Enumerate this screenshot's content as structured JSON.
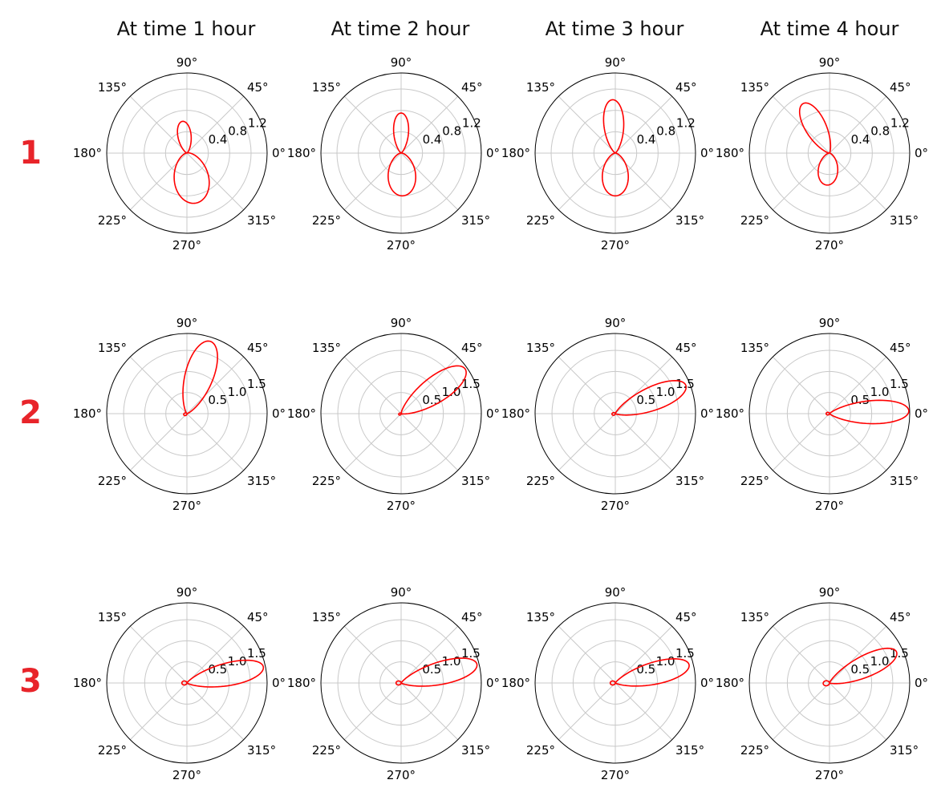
{
  "column_titles": [
    "At time 1 hour",
    "At time 2 hour",
    "At time 3 hour",
    "At time 4 hour"
  ],
  "row_labels": [
    "1",
    "2",
    "3"
  ],
  "angle_labels": [
    "0°",
    "45°",
    "90°",
    "135°",
    "180°",
    "225°",
    "270°",
    "315°"
  ],
  "colors": {
    "curve": "#ff0000",
    "grid": "#c8c8c8",
    "frame": "#000000",
    "row_label": "#e8242a"
  },
  "chart_data": [
    {
      "type": "polar",
      "row": 1,
      "col": 1,
      "title": "At time 1 hour",
      "rmax": 1.5,
      "rticks": [
        0.4,
        0.8,
        1.2
      ],
      "rtick_labels": [
        "0.4",
        "0.8",
        "1.2"
      ],
      "lobes": [
        {
          "theta": 98,
          "r": 0.6,
          "width": 20
        },
        {
          "theta": 280,
          "r": 0.95,
          "width": 34
        }
      ]
    },
    {
      "type": "polar",
      "row": 1,
      "col": 2,
      "title": "At time 2 hour",
      "rmax": 1.5,
      "rticks": [
        0.4,
        0.8,
        1.2
      ],
      "rtick_labels": [
        "0.4",
        "0.8",
        "1.2"
      ],
      "lobes": [
        {
          "theta": 90,
          "r": 0.75,
          "width": 18
        },
        {
          "theta": 272,
          "r": 0.8,
          "width": 32
        }
      ]
    },
    {
      "type": "polar",
      "row": 1,
      "col": 3,
      "title": "At time 3 hour",
      "rmax": 1.5,
      "rticks": [
        0.4,
        0.8,
        1.2
      ],
      "rtick_labels": [
        "0.4",
        "0.8",
        "1.2"
      ],
      "lobes": [
        {
          "theta": 93,
          "r": 1.0,
          "width": 18
        },
        {
          "theta": 270,
          "r": 0.8,
          "width": 30
        }
      ]
    },
    {
      "type": "polar",
      "row": 1,
      "col": 4,
      "title": "At time 4 hour",
      "rmax": 1.5,
      "rticks": [
        0.4,
        0.8,
        1.2
      ],
      "rtick_labels": [
        "0.4",
        "0.8",
        "1.2"
      ],
      "lobes": [
        {
          "theta": 118,
          "r": 1.05,
          "width": 18
        },
        {
          "theta": 265,
          "r": 0.6,
          "width": 30
        }
      ]
    },
    {
      "type": "polar",
      "row": 2,
      "col": 1,
      "title": "At time 1 hour",
      "rmax": 1.9,
      "rticks": [
        0.5,
        1.0,
        1.5
      ],
      "rtick_labels": [
        "0.5",
        "1.0",
        "1.5"
      ],
      "lobes": [
        {
          "theta": 72,
          "r": 1.8,
          "width": 18
        },
        {
          "theta": 200,
          "r": 0.08,
          "width": 40
        }
      ]
    },
    {
      "type": "polar",
      "row": 2,
      "col": 2,
      "title": "At time 2 hour",
      "rmax": 1.9,
      "rticks": [
        0.5,
        1.0,
        1.5
      ],
      "rtick_labels": [
        "0.5",
        "1.0",
        "1.5"
      ],
      "lobes": [
        {
          "theta": 35,
          "r": 1.85,
          "width": 16
        },
        {
          "theta": 200,
          "r": 0.06,
          "width": 40
        }
      ]
    },
    {
      "type": "polar",
      "row": 2,
      "col": 3,
      "title": "At time 3 hour",
      "rmax": 1.9,
      "rticks": [
        0.5,
        1.0,
        1.5
      ],
      "rtick_labels": [
        "0.5",
        "1.0",
        "1.5"
      ],
      "lobes": [
        {
          "theta": 22,
          "r": 1.8,
          "width": 15
        },
        {
          "theta": 190,
          "r": 0.08,
          "width": 40
        }
      ]
    },
    {
      "type": "polar",
      "row": 2,
      "col": 4,
      "title": "At time 4 hour",
      "rmax": 1.9,
      "rticks": [
        0.5,
        1.0,
        1.5
      ],
      "rtick_labels": [
        "0.5",
        "1.0",
        "1.5"
      ],
      "lobes": [
        {
          "theta": 2,
          "r": 1.88,
          "width": 14
        },
        {
          "theta": 180,
          "r": 0.08,
          "width": 40
        }
      ]
    },
    {
      "type": "polar",
      "row": 3,
      "col": 1,
      "title": "At time 1 hour",
      "rmax": 1.9,
      "rticks": [
        0.5,
        1.0,
        1.5
      ],
      "rtick_labels": [
        "0.5",
        "1.0",
        "1.5"
      ],
      "lobes": [
        {
          "theta": 12,
          "r": 1.85,
          "width": 14
        },
        {
          "theta": 180,
          "r": 0.12,
          "width": 40
        }
      ]
    },
    {
      "type": "polar",
      "row": 3,
      "col": 2,
      "title": "At time 2 hour",
      "rmax": 1.9,
      "rticks": [
        0.5,
        1.0,
        1.5
      ],
      "rtick_labels": [
        "0.5",
        "1.0",
        "1.5"
      ],
      "lobes": [
        {
          "theta": 14,
          "r": 1.85,
          "width": 14
        },
        {
          "theta": 180,
          "r": 0.12,
          "width": 40
        }
      ]
    },
    {
      "type": "polar",
      "row": 3,
      "col": 3,
      "title": "At time 3 hour",
      "rmax": 1.9,
      "rticks": [
        0.5,
        1.0,
        1.5
      ],
      "rtick_labels": [
        "0.5",
        "1.0",
        "1.5"
      ],
      "lobes": [
        {
          "theta": 14,
          "r": 1.8,
          "width": 14
        },
        {
          "theta": 180,
          "r": 0.12,
          "width": 40
        }
      ]
    },
    {
      "type": "polar",
      "row": 3,
      "col": 4,
      "title": "At time 4 hour",
      "rmax": 1.9,
      "rticks": [
        0.5,
        1.0,
        1.5
      ],
      "rtick_labels": [
        "0.5",
        "1.0",
        "1.5"
      ],
      "lobes": [
        {
          "theta": 25,
          "r": 1.75,
          "width": 14
        },
        {
          "theta": 185,
          "r": 0.15,
          "width": 40
        }
      ]
    }
  ]
}
